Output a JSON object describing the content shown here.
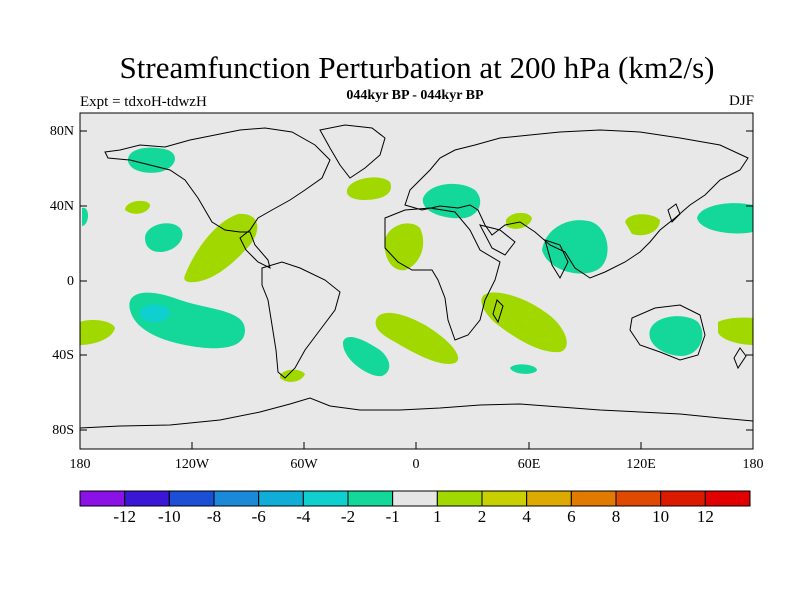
{
  "title": "Streamfunction Perturbation at 200 hPa (km2/s)",
  "subtitle": "044kyr BP - 044kyr BP",
  "left_label": "Expt = tdxoH-tdwzH",
  "right_label": "DJF",
  "lat_ticks": [
    "80N",
    "40N",
    "0",
    "40S",
    "80S"
  ],
  "lon_ticks": [
    "180",
    "120W",
    "60W",
    "0",
    "60E",
    "120E",
    "180"
  ],
  "colorbar": {
    "labels": [
      "-12",
      "-10",
      "-8",
      "-6",
      "-4",
      "-2",
      "-1",
      "1",
      "2",
      "4",
      "6",
      "8",
      "10",
      "12"
    ],
    "colors": [
      "#8a12e6",
      "#3a17d6",
      "#1a4fd6",
      "#1a8ad8",
      "#10aed6",
      "#10cfcf",
      "#14d89a",
      "#e6e6e6",
      "#a0d800",
      "#c8d000",
      "#dcaa00",
      "#e07a00",
      "#e04a00",
      "#dc1a00",
      "#e00000"
    ]
  },
  "palette": {
    "background": "#e8e8e8",
    "neg_light": "#14d89a",
    "neg_mid": "#10cfcf",
    "pos_light": "#a0d800"
  }
}
